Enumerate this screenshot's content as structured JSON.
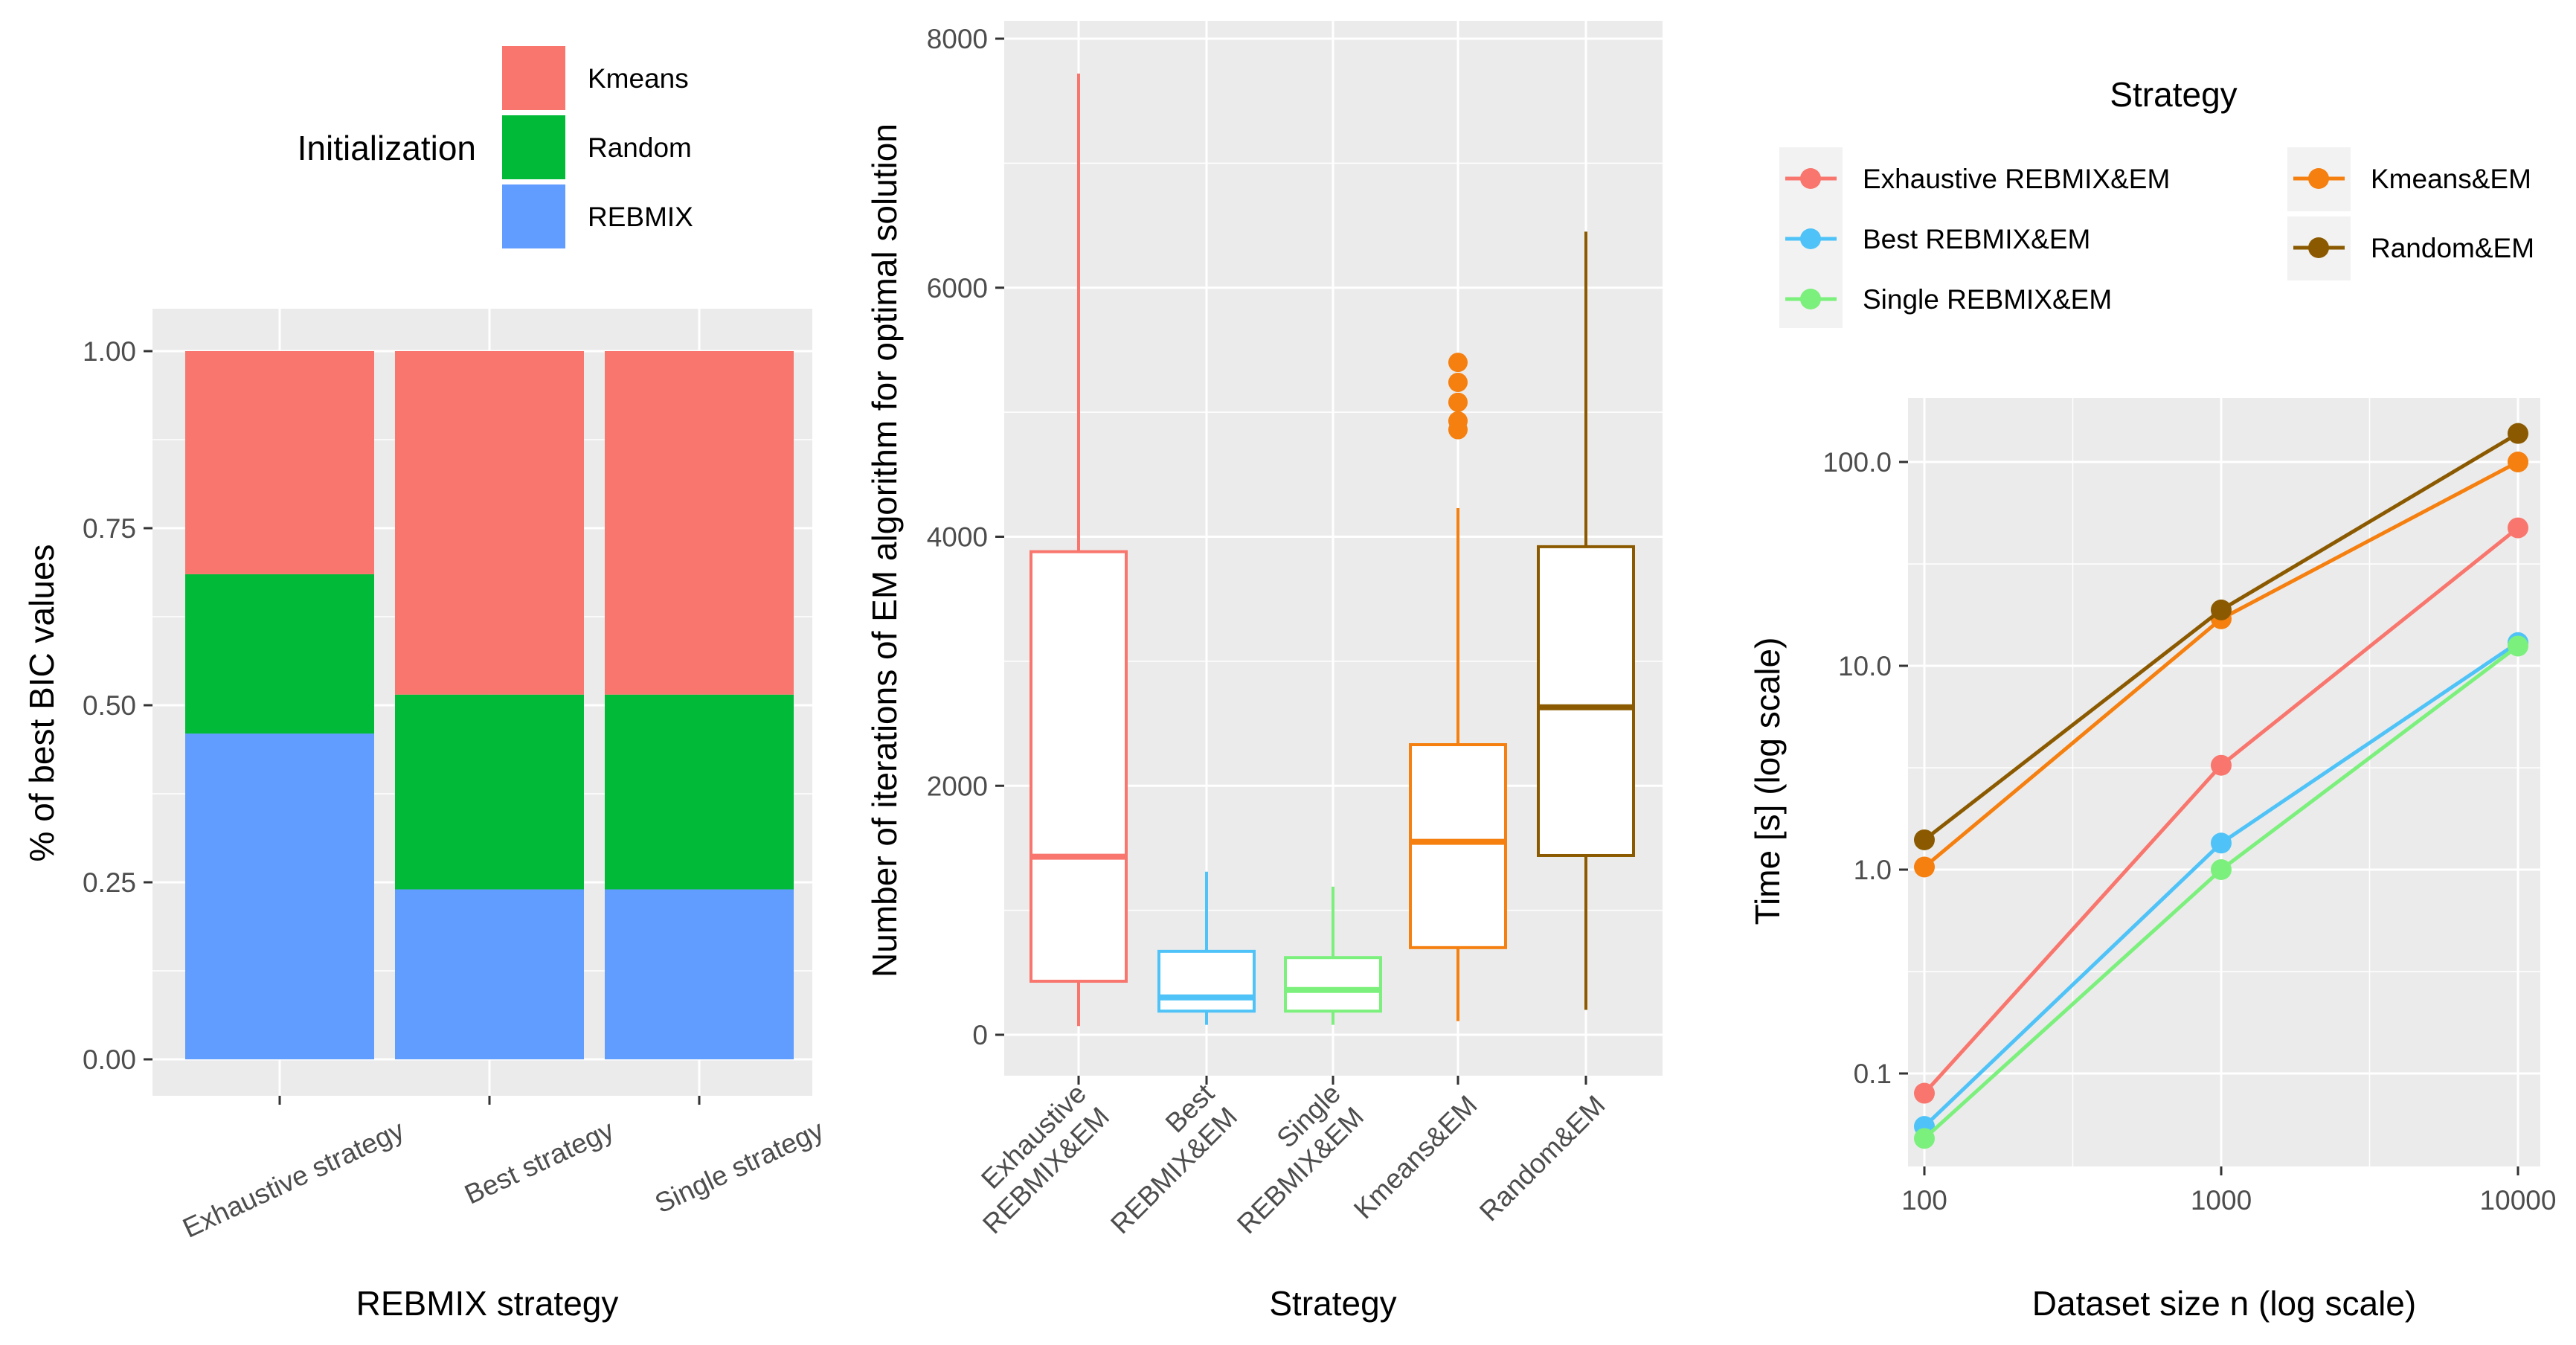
{
  "chart_data": [
    {
      "type": "bar",
      "stacked": true,
      "title": "",
      "xlabel": "REBMIX strategy",
      "ylabel": "% of best BIC values",
      "categories": [
        "Exhaustive strategy",
        "Best strategy",
        "Single strategy"
      ],
      "series": [
        {
          "name": "REBMIX",
          "color": "#619CFF",
          "values": [
            0.46,
            0.24,
            0.24
          ]
        },
        {
          "name": "Random",
          "color": "#00BA38",
          "values": [
            0.225,
            0.275,
            0.275
          ]
        },
        {
          "name": "Kmeans",
          "color": "#F8766D",
          "values": [
            0.315,
            0.485,
            0.485
          ]
        }
      ],
      "ylim": [
        0,
        1.0
      ],
      "yticks": [
        0.0,
        0.25,
        0.5,
        0.75,
        1.0
      ],
      "ytick_labels": [
        "0.00",
        "0.25",
        "0.50",
        "0.75",
        "1.00"
      ],
      "legend": {
        "title": "Initialization",
        "placement": "top",
        "entries": [
          {
            "label": "Kmeans",
            "color": "#F8766D"
          },
          {
            "label": "Random",
            "color": "#00BA38"
          },
          {
            "label": "REBMIX",
            "color": "#619CFF"
          }
        ]
      },
      "grid": true
    },
    {
      "type": "box",
      "title": "",
      "xlabel": "Strategy",
      "ylabel": "Number of iterations of EM algorithm for optimal solution",
      "categories": [
        "Exhaustive REBMIX&EM",
        "Best REBMIX&EM",
        "Single REBMIX&EM",
        "Kmeans&EM",
        "Random&EM"
      ],
      "category_labels": [
        [
          "Exhaustive",
          "REBMIX&EM"
        ],
        [
          "Best",
          "REBMIX&EM"
        ],
        [
          "Single",
          "REBMIX&EM"
        ],
        [
          "Kmeans&EM"
        ],
        [
          "Random&EM"
        ]
      ],
      "boxes": [
        {
          "min": 70,
          "q1": 430,
          "median": 1430,
          "q3": 3880,
          "max": 7720,
          "outliers": [],
          "color": "#F8766D"
        },
        {
          "min": 80,
          "q1": 190,
          "median": 300,
          "q3": 670,
          "max": 1310,
          "outliers": [],
          "color": "#4FC3F7"
        },
        {
          "min": 80,
          "q1": 190,
          "median": 360,
          "q3": 620,
          "max": 1190,
          "outliers": [],
          "color": "#7CF07C"
        },
        {
          "min": 110,
          "q1": 700,
          "median": 1550,
          "q3": 2330,
          "max": 4230,
          "outliers": [
            4860,
            4930,
            5080,
            5240,
            5400
          ],
          "color": "#F57F0F"
        },
        {
          "min": 200,
          "q1": 1440,
          "median": 2630,
          "q3": 3920,
          "max": 6450,
          "outliers": [],
          "color": "#8B5A00"
        }
      ],
      "ylim": [
        -300,
        8200
      ],
      "yticks": [
        0,
        2000,
        4000,
        6000,
        8000
      ],
      "ytick_labels": [
        "0",
        "2000",
        "4000",
        "6000",
        "8000"
      ],
      "grid": true
    },
    {
      "type": "line",
      "title": "",
      "xlabel": "Dataset size n (log scale)",
      "ylabel": "Time [s] (log scale)",
      "xscale": "log",
      "yscale": "log",
      "x": [
        100,
        1000,
        10000
      ],
      "xticks": [
        100,
        1000,
        10000
      ],
      "xtick_labels": [
        "100",
        "1000",
        "10000"
      ],
      "yticks": [
        0.1,
        1,
        10,
        100
      ],
      "ytick_labels": [
        "0.1",
        "1.0",
        "10.0",
        "100.0"
      ],
      "xlim": [
        70,
        14500
      ],
      "ylim": [
        0.028,
        200
      ],
      "series": [
        {
          "name": "Exhaustive REBMIX&EM",
          "color": "#F8766D",
          "values": [
            0.08,
            3.25,
            47.5
          ]
        },
        {
          "name": "Best REBMIX&EM",
          "color": "#4FC3F7",
          "values": [
            0.055,
            1.35,
            13.0
          ]
        },
        {
          "name": "Single REBMIX&EM",
          "color": "#7CF07C",
          "values": [
            0.048,
            1.0,
            12.5
          ]
        },
        {
          "name": "Kmeans&EM",
          "color": "#F57F0F",
          "values": [
            1.03,
            17.0,
            100.0
          ]
        },
        {
          "name": "Random&EM",
          "color": "#8B5A00",
          "values": [
            1.4,
            18.8,
            138.0
          ]
        }
      ],
      "legend": {
        "title": "Strategy",
        "placement": "top",
        "columns": [
          [
            "Exhaustive REBMIX&EM",
            "Best REBMIX&EM",
            "Single REBMIX&EM"
          ],
          [
            "Kmeans&EM",
            "Random&EM"
          ]
        ]
      },
      "grid": true
    }
  ]
}
